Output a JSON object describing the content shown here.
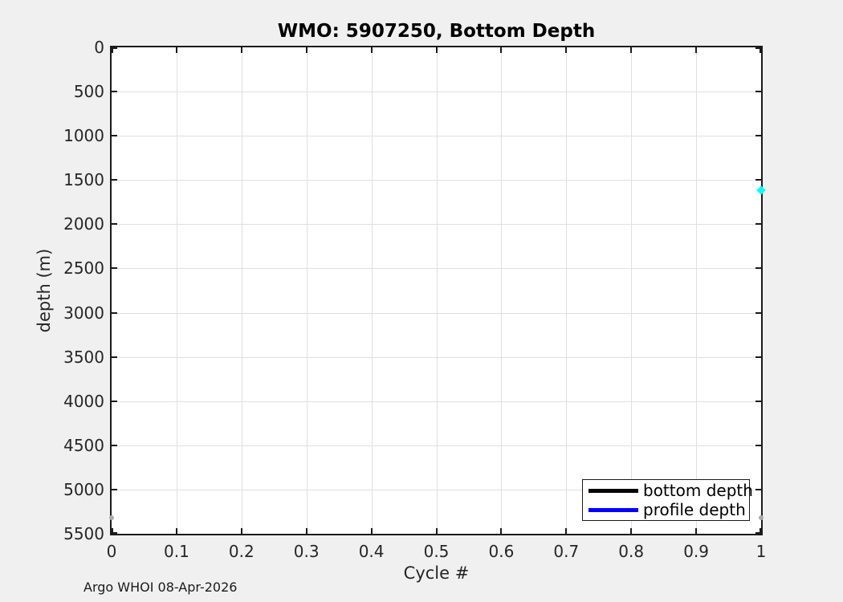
{
  "figure": {
    "background_color": "#f0f0f0",
    "plot_background_color": "#ffffff",
    "grid_color": "#e0e0e0",
    "axis_color": "#1a1a1a",
    "tick_label_color": "#262626",
    "title_color": "#000000"
  },
  "footer": {
    "text": "Argo WHOI 08-Apr-2026"
  },
  "chart_data": {
    "type": "scatter",
    "title": "WMO: 5907250, Bottom Depth",
    "xlabel": "Cycle #",
    "ylabel": "depth (m)",
    "xlim": [
      0,
      1
    ],
    "ylim": [
      0,
      5500
    ],
    "y_axis_reversed": true,
    "grid": true,
    "x_ticks": [
      0,
      0.1,
      0.2,
      0.3,
      0.4,
      0.5,
      0.6,
      0.7,
      0.8,
      0.9,
      1
    ],
    "x_tick_labels": [
      "0",
      "0.1",
      "0.2",
      "0.3",
      "0.4",
      "0.5",
      "0.6",
      "0.7",
      "0.8",
      "0.9",
      "1"
    ],
    "y_ticks": [
      0,
      500,
      1000,
      1500,
      2000,
      2500,
      3000,
      3500,
      4000,
      4500,
      5000,
      5500
    ],
    "y_tick_labels": [
      "0",
      "500",
      "1000",
      "1500",
      "2000",
      "2500",
      "3000",
      "3500",
      "4000",
      "4500",
      "5000",
      "5500"
    ],
    "series": [
      {
        "name": "bottom depth",
        "legend_color": "#000000",
        "marker_color": "#ababab",
        "marker_shape": "circle",
        "marker_size": 6,
        "points": [
          {
            "x": 0,
            "y": 5320
          },
          {
            "x": 1,
            "y": 5320
          }
        ]
      },
      {
        "name": "profile depth",
        "legend_color": "#0000ff",
        "marker_color": "#00ffff",
        "marker_shape": "diamond",
        "marker_size": 8,
        "points": [
          {
            "x": 1,
            "y": 1620
          }
        ]
      }
    ],
    "legend": {
      "position": "bottom-right",
      "entries": [
        "bottom depth",
        "profile depth"
      ]
    }
  }
}
